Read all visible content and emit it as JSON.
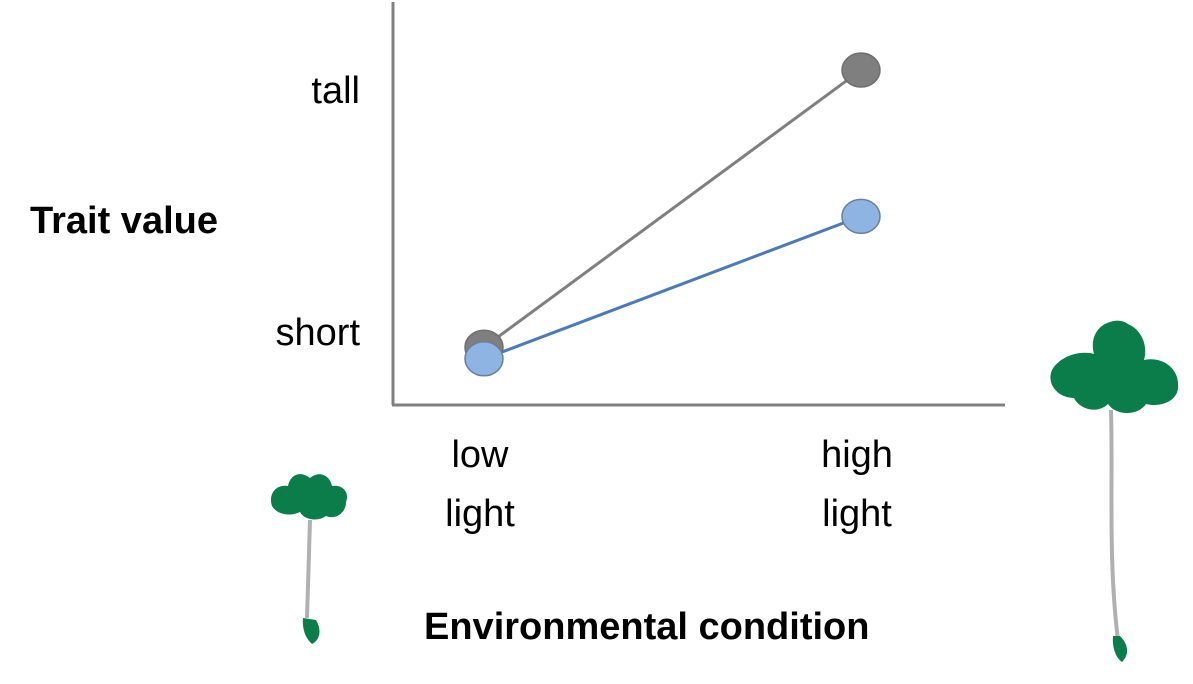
{
  "chart_data": {
    "type": "line",
    "ylabel": "Trait value",
    "xlabel": "Environmental condition",
    "categories": [
      "low light",
      "high light"
    ],
    "ytick_labels": [
      {
        "label": "tall",
        "value": 0.95
      },
      {
        "label": "short",
        "value": 0.18
      }
    ],
    "ylim": [
      0,
      1
    ],
    "grid": false,
    "series": [
      {
        "values": [
          0.15,
          0.87
        ],
        "color": "#7f7f7f"
      },
      {
        "values": [
          0.12,
          0.49
        ],
        "color": "#8eb4e3",
        "line_color": "#4a7ab8"
      }
    ]
  },
  "illustrations": [
    "small-plant-icon",
    "tall-plant-icon"
  ],
  "colors": {
    "axis": "#808080",
    "leaf": "#0b7d4a",
    "stem": "#b0b0b0"
  }
}
